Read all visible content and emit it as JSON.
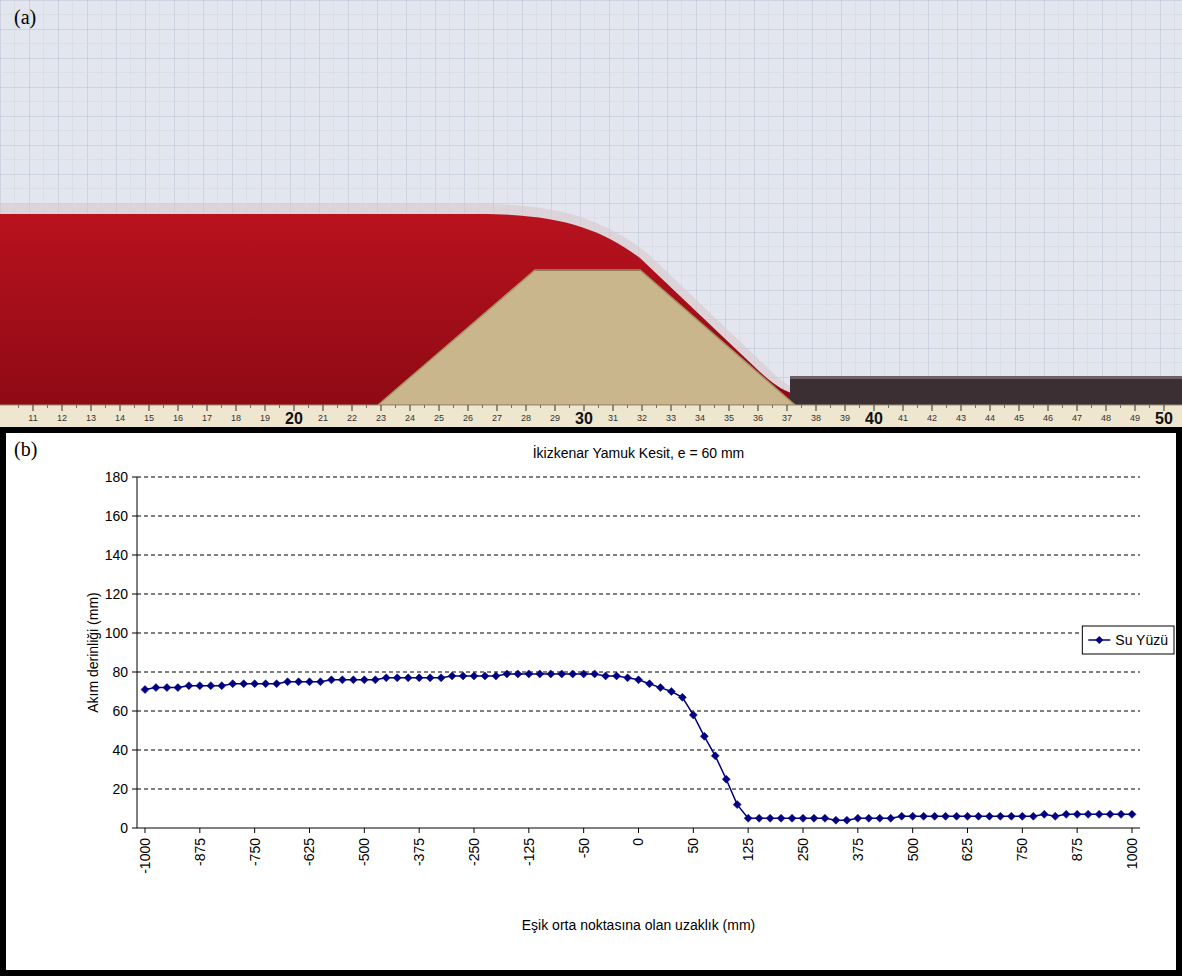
{
  "panels": {
    "a": {
      "label": "(a)",
      "ruler_labels": [
        11,
        12,
        13,
        14,
        15,
        16,
        17,
        18,
        19,
        20,
        21,
        22,
        23,
        24,
        25,
        26,
        27,
        28,
        29,
        30,
        31,
        32,
        33,
        34,
        35,
        36,
        37,
        38,
        39,
        40,
        41,
        42,
        43,
        44,
        45,
        46,
        47,
        48,
        49,
        50
      ]
    },
    "b": {
      "label": "(b)"
    }
  },
  "chart_data": {
    "type": "line",
    "title": "İkizkenar Yamuk Kesit, e = 60 mm",
    "x_label": "Eşik orta noktasına olan uzaklık (mm)",
    "y_label": "Akım derinliği (mm)",
    "categories": [
      -1000,
      null,
      null,
      null,
      null,
      -875,
      null,
      null,
      null,
      null,
      -750,
      null,
      null,
      null,
      null,
      -625,
      null,
      null,
      null,
      null,
      -500,
      null,
      null,
      null,
      null,
      -375,
      null,
      null,
      null,
      null,
      -250,
      null,
      null,
      null,
      null,
      -125,
      null,
      null,
      null,
      null,
      -50,
      null,
      null,
      null,
      null,
      0,
      null,
      null,
      null,
      null,
      50,
      null,
      null,
      null,
      null,
      125,
      null,
      null,
      null,
      null,
      250,
      null,
      null,
      null,
      null,
      375,
      null,
      null,
      null,
      null,
      500,
      null,
      null,
      null,
      null,
      625,
      null,
      null,
      null,
      null,
      750,
      null,
      null,
      null,
      null,
      875,
      null,
      null,
      null,
      null,
      1000
    ],
    "series": [
      {
        "name": "Su Yüzü",
        "color": "#000080",
        "marker": "diamond",
        "values": [
          71,
          72,
          72,
          72,
          73,
          73,
          73,
          73,
          74,
          74,
          74,
          74,
          74,
          75,
          75,
          75,
          75,
          76,
          76,
          76,
          76,
          76,
          77,
          77,
          77,
          77,
          77,
          77,
          78,
          78,
          78,
          78,
          78,
          79,
          79,
          79,
          79,
          79,
          79,
          79,
          79,
          79,
          78,
          78,
          77,
          76,
          74,
          72,
          70,
          67,
          58,
          47,
          37,
          25,
          12,
          5,
          5,
          5,
          5,
          5,
          5,
          5,
          5,
          4,
          4,
          5,
          5,
          5,
          5,
          6,
          6,
          6,
          6,
          6,
          6,
          6,
          6,
          6,
          6,
          6,
          6,
          6,
          7,
          6,
          7,
          7,
          7,
          7,
          7,
          7,
          7
        ]
      }
    ],
    "ylim": [
      0,
      180
    ],
    "yticks": [
      0,
      20,
      40,
      60,
      80,
      100,
      120,
      140,
      160,
      180
    ],
    "grid": true,
    "legend": "right"
  }
}
